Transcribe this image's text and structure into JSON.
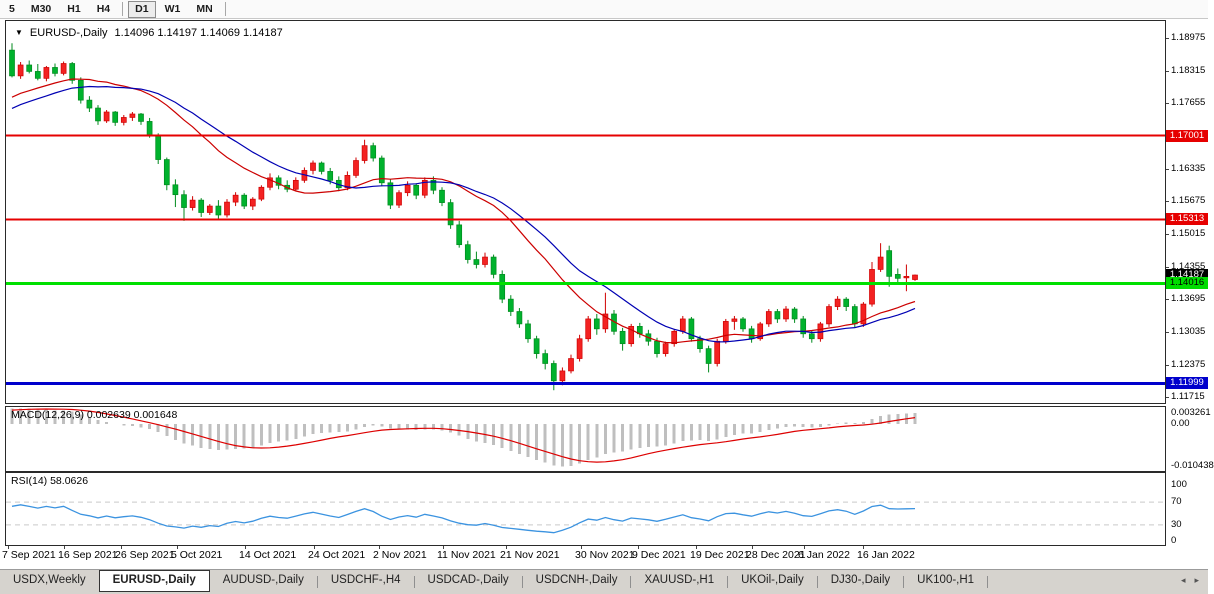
{
  "toolbar": {
    "periods": [
      {
        "label": "5",
        "active": false
      },
      {
        "label": "M30",
        "active": false
      },
      {
        "label": "H1",
        "active": false
      },
      {
        "label": "H4",
        "active": false
      },
      {
        "label": "D1",
        "active": true
      },
      {
        "label": "W1",
        "active": false
      },
      {
        "label": "MN",
        "active": false
      }
    ]
  },
  "header": {
    "dropdown_icon": "▼",
    "symbol": "EURUSD-,Daily",
    "ohlc": "1.14096 1.14197 1.14069 1.14187"
  },
  "chart_data": {
    "type": "candlestick",
    "symbol": "EURUSD-,Daily",
    "current_ohlc": {
      "open": 1.14096,
      "high": 1.14197,
      "low": 1.14069,
      "close": 1.14187
    },
    "ylim": {
      "min": 1.11622,
      "max": 1.19177
    },
    "up_color": "#f32222",
    "up_stroke": "#cf0000",
    "down_color": "#00b22d",
    "down_stroke": "#008a1e",
    "y_ticks": [
      "1.18975",
      "1.18315",
      "1.17655",
      "1.16335",
      "1.15675",
      "1.15015",
      "1.14355",
      "1.13695",
      "1.13035",
      "1.12375",
      "1.11715"
    ],
    "badges": [
      {
        "text": "1.17001",
        "bg": "#e60000",
        "fg": "#ffffff"
      },
      {
        "text": "1.15313",
        "bg": "#e60000",
        "fg": "#ffffff"
      },
      {
        "text": "1.14187",
        "bg": "#000000",
        "fg": "#ffffff"
      },
      {
        "text": "1.14016",
        "bg": "#00dd00",
        "fg": "#000000"
      },
      {
        "text": "1.11999",
        "bg": "#0000cc",
        "fg": "#ffffff"
      }
    ],
    "hlines": [
      {
        "price": 1.17001,
        "color": "#e60000",
        "w": 2
      },
      {
        "price": 1.15313,
        "color": "#e60000",
        "w": 2
      },
      {
        "price": 1.14016,
        "color": "#00e000",
        "w": 3
      },
      {
        "price": 1.11999,
        "color": "#0000cc",
        "w": 3
      }
    ],
    "ma": {
      "fast": {
        "period": 18,
        "color": "#cc0000"
      },
      "slow": {
        "period": 24,
        "color": "#0000b3"
      },
      "preroll": [
        1.166,
        1.1838
      ]
    },
    "macd": {
      "label": "MACD(12,26,9) 0.002639 0.001648",
      "fast_period": 12,
      "slow_period": 26,
      "signal_period": 9,
      "macd_value": 0.002639,
      "signal_value": 0.001648,
      "axis_labels": [
        "0.003261",
        "0.00",
        "-0.010438"
      ],
      "bar_color": "#bfbfbf",
      "signal_color": "#dd0000"
    },
    "rsi": {
      "label": "RSI(14) 58.0626",
      "period": 14,
      "value": 58.0626,
      "levels": [
        70,
        30
      ],
      "axis_labels": [
        "100",
        "70",
        "30",
        "0"
      ],
      "line_color": "#3b93e0",
      "level_color": "#c9c9c9"
    },
    "x_labels": [
      {
        "text": "7 Sep 2021",
        "x": 2
      },
      {
        "text": "16 Sep 2021",
        "x": 58
      },
      {
        "text": "26 Sep 2021",
        "x": 115
      },
      {
        "text": "5 Oct 2021",
        "x": 171
      },
      {
        "text": "14 Oct 2021",
        "x": 239
      },
      {
        "text": "24 Oct 2021",
        "x": 308
      },
      {
        "text": "2 Nov 2021",
        "x": 373
      },
      {
        "text": "11 Nov 2021",
        "x": 437
      },
      {
        "text": "21 Nov 2021",
        "x": 500
      },
      {
        "text": "30 Nov 2021",
        "x": 575
      },
      {
        "text": "9 Dec 2021",
        "x": 632
      },
      {
        "text": "19 Dec 2021",
        "x": 690
      },
      {
        "text": "28 Dec 2021",
        "x": 746
      },
      {
        "text": "6 Jan 2022",
        "x": 798
      },
      {
        "text": "16 Jan 2022",
        "x": 857
      }
    ],
    "candles": [
      [
        1.1873,
        1.1887,
        1.1818,
        1.1821
      ],
      [
        1.1821,
        1.1849,
        1.1815,
        1.1843
      ],
      [
        1.1843,
        1.1852,
        1.1826,
        1.183
      ],
      [
        1.183,
        1.1845,
        1.1812,
        1.1816
      ],
      [
        1.1816,
        1.1841,
        1.181,
        1.1838
      ],
      [
        1.1838,
        1.1846,
        1.182,
        1.1826
      ],
      [
        1.1826,
        1.185,
        1.1822,
        1.1846
      ],
      [
        1.1846,
        1.1849,
        1.1805,
        1.1812
      ],
      [
        1.1812,
        1.1818,
        1.1765,
        1.1772
      ],
      [
        1.1772,
        1.178,
        1.1748,
        1.1756
      ],
      [
        1.1756,
        1.1762,
        1.1722,
        1.173
      ],
      [
        1.173,
        1.1752,
        1.1726,
        1.1748
      ],
      [
        1.1748,
        1.175,
        1.172,
        1.1727
      ],
      [
        1.1727,
        1.1742,
        1.1721,
        1.1737
      ],
      [
        1.1737,
        1.1748,
        1.173,
        1.1744
      ],
      [
        1.1744,
        1.1746,
        1.1722,
        1.1729
      ],
      [
        1.1729,
        1.1736,
        1.1696,
        1.1701
      ],
      [
        1.1701,
        1.1705,
        1.1643,
        1.1652
      ],
      [
        1.1652,
        1.1656,
        1.159,
        1.1601
      ],
      [
        1.1601,
        1.1612,
        1.1556,
        1.1581
      ],
      [
        1.1581,
        1.159,
        1.1528,
        1.1555
      ],
      [
        1.1555,
        1.1578,
        1.1549,
        1.157
      ],
      [
        1.157,
        1.1574,
        1.1536,
        1.1545
      ],
      [
        1.1545,
        1.1562,
        1.154,
        1.1558
      ],
      [
        1.1558,
        1.157,
        1.1529,
        1.154
      ],
      [
        1.154,
        1.1572,
        1.1535,
        1.1566
      ],
      [
        1.1566,
        1.1586,
        1.1558,
        1.158
      ],
      [
        1.158,
        1.1584,
        1.1552,
        1.1558
      ],
      [
        1.1558,
        1.1576,
        1.155,
        1.1572
      ],
      [
        1.1572,
        1.16,
        1.1568,
        1.1596
      ],
      [
        1.1596,
        1.1624,
        1.159,
        1.1615
      ],
      [
        1.1615,
        1.162,
        1.1592,
        1.16
      ],
      [
        1.16,
        1.161,
        1.1586,
        1.1592
      ],
      [
        1.1592,
        1.1616,
        1.1588,
        1.161
      ],
      [
        1.161,
        1.1636,
        1.1605,
        1.163
      ],
      [
        1.163,
        1.165,
        1.1622,
        1.1645
      ],
      [
        1.1645,
        1.1648,
        1.1622,
        1.1628
      ],
      [
        1.1628,
        1.1635,
        1.1602,
        1.161
      ],
      [
        1.161,
        1.1618,
        1.1588,
        1.1595
      ],
      [
        1.1595,
        1.1628,
        1.159,
        1.162
      ],
      [
        1.162,
        1.1656,
        1.1615,
        1.165
      ],
      [
        1.165,
        1.1692,
        1.1644,
        1.168
      ],
      [
        1.168,
        1.1686,
        1.1648,
        1.1655
      ],
      [
        1.1655,
        1.166,
        1.1598,
        1.1605
      ],
      [
        1.1605,
        1.1612,
        1.1552,
        1.156
      ],
      [
        1.156,
        1.159,
        1.1554,
        1.1585
      ],
      [
        1.1585,
        1.1608,
        1.1578,
        1.16
      ],
      [
        1.16,
        1.1604,
        1.1572,
        1.158
      ],
      [
        1.158,
        1.1616,
        1.1574,
        1.161
      ],
      [
        1.161,
        1.1618,
        1.1582,
        1.159
      ],
      [
        1.159,
        1.1596,
        1.1558,
        1.1565
      ],
      [
        1.1565,
        1.1572,
        1.1512,
        1.152
      ],
      [
        1.152,
        1.1528,
        1.1474,
        1.148
      ],
      [
        1.148,
        1.1488,
        1.1442,
        1.145
      ],
      [
        1.145,
        1.1466,
        1.1432,
        1.144
      ],
      [
        1.144,
        1.1464,
        1.1434,
        1.1455
      ],
      [
        1.1455,
        1.146,
        1.1412,
        1.142
      ],
      [
        1.142,
        1.1428,
        1.1362,
        1.137
      ],
      [
        1.137,
        1.1378,
        1.1336,
        1.1345
      ],
      [
        1.1345,
        1.1352,
        1.1312,
        1.132
      ],
      [
        1.132,
        1.1328,
        1.1282,
        1.129
      ],
      [
        1.129,
        1.1296,
        1.125,
        1.126
      ],
      [
        1.126,
        1.1268,
        1.1228,
        1.124
      ],
      [
        1.124,
        1.1246,
        1.1186,
        1.1205
      ],
      [
        1.1205,
        1.1232,
        1.1196,
        1.1225
      ],
      [
        1.1225,
        1.1258,
        1.122,
        1.125
      ],
      [
        1.125,
        1.1298,
        1.1244,
        1.129
      ],
      [
        1.129,
        1.1336,
        1.1284,
        1.133
      ],
      [
        1.133,
        1.134,
        1.1298,
        1.131
      ],
      [
        1.131,
        1.1383,
        1.1302,
        1.134
      ],
      [
        1.134,
        1.1348,
        1.1298,
        1.1305
      ],
      [
        1.1305,
        1.1312,
        1.1266,
        1.128
      ],
      [
        1.128,
        1.132,
        1.1274,
        1.1315
      ],
      [
        1.1315,
        1.1322,
        1.1292,
        1.13
      ],
      [
        1.13,
        1.1308,
        1.1276,
        1.1285
      ],
      [
        1.1285,
        1.1292,
        1.1252,
        1.126
      ],
      [
        1.126,
        1.1284,
        1.1254,
        1.128
      ],
      [
        1.128,
        1.131,
        1.1274,
        1.1305
      ],
      [
        1.1305,
        1.1336,
        1.13,
        1.133
      ],
      [
        1.133,
        1.1334,
        1.1284,
        1.129
      ],
      [
        1.129,
        1.1296,
        1.1262,
        1.127
      ],
      [
        1.127,
        1.1276,
        1.1222,
        1.124
      ],
      [
        1.124,
        1.129,
        1.1234,
        1.1285
      ],
      [
        1.1285,
        1.133,
        1.128,
        1.1325
      ],
      [
        1.1325,
        1.1336,
        1.1308,
        1.133
      ],
      [
        1.133,
        1.1334,
        1.1304,
        1.131
      ],
      [
        1.131,
        1.1316,
        1.1282,
        1.129
      ],
      [
        1.129,
        1.1324,
        1.1286,
        1.132
      ],
      [
        1.132,
        1.135,
        1.1314,
        1.1345
      ],
      [
        1.1345,
        1.135,
        1.1322,
        1.133
      ],
      [
        1.133,
        1.1356,
        1.1324,
        1.135
      ],
      [
        1.135,
        1.1354,
        1.1322,
        1.133
      ],
      [
        1.133,
        1.1336,
        1.1292,
        1.13
      ],
      [
        1.13,
        1.1306,
        1.1282,
        1.129
      ],
      [
        1.129,
        1.1324,
        1.1284,
        1.132
      ],
      [
        1.132,
        1.136,
        1.1314,
        1.1355
      ],
      [
        1.1355,
        1.1376,
        1.1348,
        1.137
      ],
      [
        1.137,
        1.1374,
        1.1346,
        1.1355
      ],
      [
        1.1355,
        1.136,
        1.1312,
        1.132
      ],
      [
        1.132,
        1.1364,
        1.1314,
        1.136
      ],
      [
        1.136,
        1.1445,
        1.1355,
        1.143
      ],
      [
        1.143,
        1.1483,
        1.1425,
        1.1455
      ],
      [
        1.1468,
        1.1478,
        1.1395,
        1.1416
      ],
      [
        1.142,
        1.1432,
        1.1402,
        1.1412
      ],
      [
        1.1413,
        1.144,
        1.1386,
        1.1416
      ],
      [
        1.14096,
        1.14197,
        1.14069,
        1.14187
      ]
    ]
  },
  "tabs": {
    "items": [
      {
        "label": "USDX,Weekly",
        "active": false
      },
      {
        "label": "EURUSD-,Daily",
        "active": true
      },
      {
        "label": "AUDUSD-,Daily",
        "active": false
      },
      {
        "label": "USDCHF-,H4",
        "active": false
      },
      {
        "label": "USDCAD-,Daily",
        "active": false
      },
      {
        "label": "USDCNH-,Daily",
        "active": false
      },
      {
        "label": "XAUUSD-,H1",
        "active": false
      },
      {
        "label": "UKOil-,Daily",
        "active": false
      },
      {
        "label": "DJ30-,Daily",
        "active": false
      },
      {
        "label": "UK100-,H1",
        "active": false
      }
    ],
    "scroll_left_icon": "◂",
    "scroll_right_icon": "▸"
  }
}
